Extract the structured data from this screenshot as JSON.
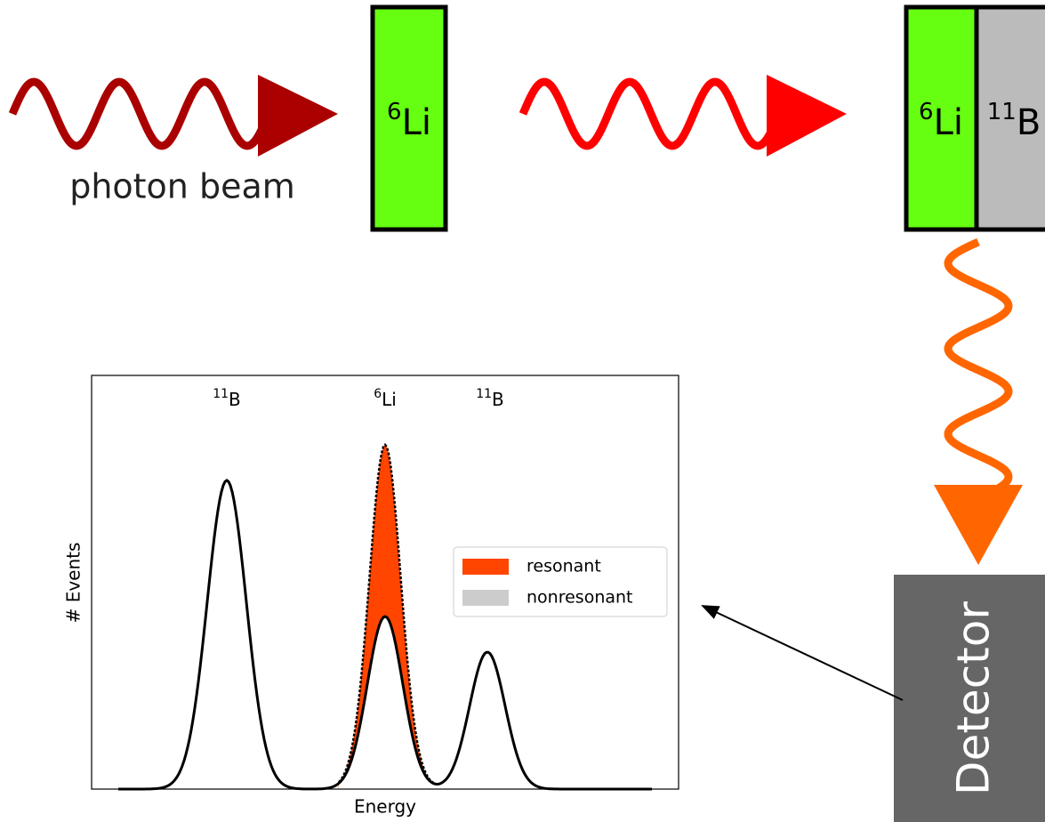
{
  "beam": {
    "label": "photon beam"
  },
  "target": {
    "mass": "6",
    "symbol": "Li"
  },
  "stack": {
    "first": {
      "mass": "6",
      "symbol": "Li"
    },
    "second": {
      "mass": "11",
      "symbol": "B"
    }
  },
  "detector": {
    "label": "Detector"
  },
  "plot": {
    "xlabel": "Energy",
    "ylabel": "# Events",
    "peaks": [
      {
        "mass": "11",
        "symbol": "B"
      },
      {
        "mass": "6",
        "symbol": "Li"
      },
      {
        "mass": "11",
        "symbol": "B"
      }
    ],
    "legend": [
      "resonant",
      "nonresonant"
    ]
  }
}
